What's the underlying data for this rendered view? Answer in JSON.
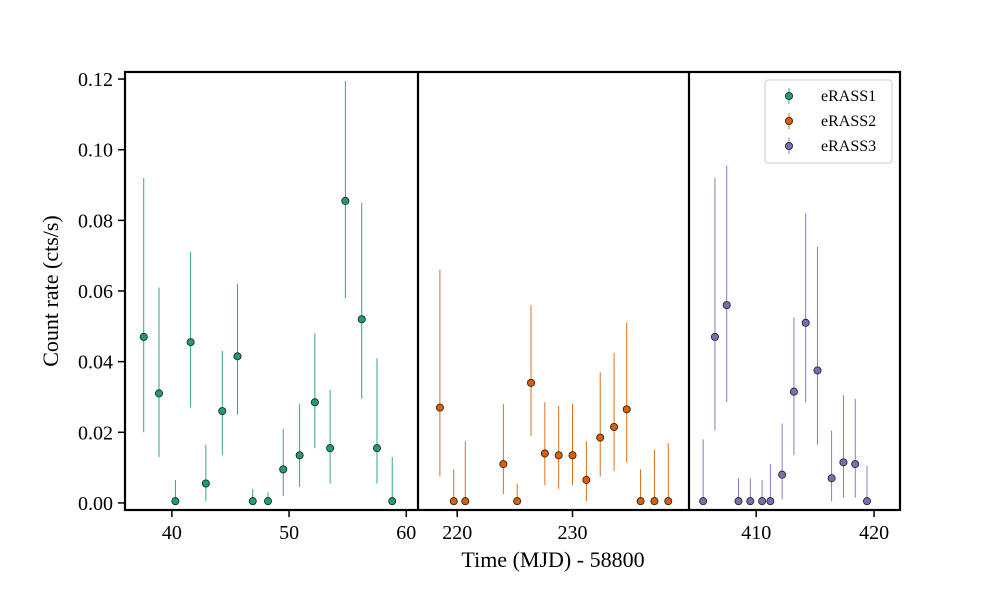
{
  "chart_data": {
    "type": "scatter",
    "title": "",
    "xlabel": "Time (MJD) - 58800",
    "ylabel": "Count rate (cts/s)",
    "ylim": [
      -0.002,
      0.122
    ],
    "y_ticks": [
      0.0,
      0.02,
      0.04,
      0.06,
      0.08,
      0.1,
      0.12
    ],
    "y_tick_labels": [
      "0.00",
      "0.02",
      "0.04",
      "0.06",
      "0.08",
      "0.10",
      "0.12"
    ],
    "grid": false,
    "legend_position": "top-right",
    "panels": [
      {
        "xlim": [
          36,
          61
        ],
        "x_ticks": [
          40,
          50,
          60
        ],
        "x_tick_labels": [
          "40",
          "50",
          "60"
        ]
      },
      {
        "xlim": [
          216.6,
          240.1
        ],
        "x_ticks": [
          220,
          230
        ],
        "x_tick_labels": [
          "220",
          "230"
        ]
      },
      {
        "xlim": [
          404.3,
          422.2
        ],
        "x_ticks": [
          410,
          420
        ],
        "x_tick_labels": [
          "410",
          "420"
        ]
      }
    ],
    "series": [
      {
        "name": "eRASS1",
        "color": "#1b9e77",
        "panel": 0,
        "points": [
          {
            "x": 37.6,
            "y": 0.047,
            "lo": 0.02,
            "hi": 0.092
          },
          {
            "x": 38.9,
            "y": 0.031,
            "lo": 0.013,
            "hi": 0.061
          },
          {
            "x": 40.3,
            "y": 0.0005,
            "lo": 0.0,
            "hi": 0.0065
          },
          {
            "x": 41.6,
            "y": 0.0455,
            "lo": 0.027,
            "hi": 0.071
          },
          {
            "x": 42.9,
            "y": 0.0055,
            "lo": 0.0005,
            "hi": 0.0165
          },
          {
            "x": 44.3,
            "y": 0.026,
            "lo": 0.0135,
            "hi": 0.043
          },
          {
            "x": 45.6,
            "y": 0.0415,
            "lo": 0.025,
            "hi": 0.062
          },
          {
            "x": 46.9,
            "y": 0.0005,
            "lo": 0.0,
            "hi": 0.004
          },
          {
            "x": 48.2,
            "y": 0.0005,
            "lo": 0.0,
            "hi": 0.003
          },
          {
            "x": 49.5,
            "y": 0.0095,
            "lo": 0.002,
            "hi": 0.021
          },
          {
            "x": 50.9,
            "y": 0.0135,
            "lo": 0.0045,
            "hi": 0.028
          },
          {
            "x": 52.2,
            "y": 0.0285,
            "lo": 0.0155,
            "hi": 0.048
          },
          {
            "x": 53.5,
            "y": 0.0155,
            "lo": 0.0055,
            "hi": 0.032
          },
          {
            "x": 54.8,
            "y": 0.0855,
            "lo": 0.058,
            "hi": 0.1195
          },
          {
            "x": 56.2,
            "y": 0.052,
            "lo": 0.0295,
            "hi": 0.085
          },
          {
            "x": 57.5,
            "y": 0.0155,
            "lo": 0.0055,
            "hi": 0.041
          },
          {
            "x": 58.8,
            "y": 0.0005,
            "lo": 0.0,
            "hi": 0.013
          }
        ]
      },
      {
        "name": "eRASS2",
        "color": "#d95f02",
        "panel": 1,
        "points": [
          {
            "x": 218.5,
            "y": 0.027,
            "lo": 0.0075,
            "hi": 0.066
          },
          {
            "x": 219.7,
            "y": 0.0005,
            "lo": 0.0,
            "hi": 0.0095
          },
          {
            "x": 220.7,
            "y": 0.0005,
            "lo": 0.0,
            "hi": 0.0175
          },
          {
            "x": 224.0,
            "y": 0.011,
            "lo": 0.0025,
            "hi": 0.028
          },
          {
            "x": 225.2,
            "y": 0.0005,
            "lo": 0.0,
            "hi": 0.0055
          },
          {
            "x": 226.4,
            "y": 0.034,
            "lo": 0.019,
            "hi": 0.056
          },
          {
            "x": 227.6,
            "y": 0.014,
            "lo": 0.005,
            "hi": 0.0285
          },
          {
            "x": 228.8,
            "y": 0.0135,
            "lo": 0.004,
            "hi": 0.0275
          },
          {
            "x": 230.0,
            "y": 0.0135,
            "lo": 0.005,
            "hi": 0.028
          },
          {
            "x": 231.2,
            "y": 0.0065,
            "lo": 0.0005,
            "hi": 0.0175
          },
          {
            "x": 232.4,
            "y": 0.0185,
            "lo": 0.0075,
            "hi": 0.037
          },
          {
            "x": 233.6,
            "y": 0.0215,
            "lo": 0.009,
            "hi": 0.0425
          },
          {
            "x": 234.7,
            "y": 0.0265,
            "lo": 0.0115,
            "hi": 0.051
          },
          {
            "x": 235.9,
            "y": 0.0005,
            "lo": 0.0,
            "hi": 0.0095
          },
          {
            "x": 237.1,
            "y": 0.0005,
            "lo": 0.0,
            "hi": 0.015
          },
          {
            "x": 238.3,
            "y": 0.0005,
            "lo": 0.0,
            "hi": 0.017
          }
        ]
      },
      {
        "name": "eRASS3",
        "color": "#7570b3",
        "panel": 2,
        "points": [
          {
            "x": 405.5,
            "y": 0.0005,
            "lo": 0.0,
            "hi": 0.018
          },
          {
            "x": 406.5,
            "y": 0.047,
            "lo": 0.0205,
            "hi": 0.092
          },
          {
            "x": 407.5,
            "y": 0.056,
            "lo": 0.0285,
            "hi": 0.0955
          },
          {
            "x": 408.5,
            "y": 0.0005,
            "lo": 0.0,
            "hi": 0.007
          },
          {
            "x": 409.5,
            "y": 0.0005,
            "lo": 0.0,
            "hi": 0.007
          },
          {
            "x": 410.5,
            "y": 0.0005,
            "lo": 0.0,
            "hi": 0.0065
          },
          {
            "x": 411.2,
            "y": 0.0005,
            "lo": 0.0,
            "hi": 0.011
          },
          {
            "x": 412.2,
            "y": 0.008,
            "lo": 0.001,
            "hi": 0.0225
          },
          {
            "x": 413.2,
            "y": 0.0315,
            "lo": 0.0135,
            "hi": 0.0525
          },
          {
            "x": 414.2,
            "y": 0.051,
            "lo": 0.0285,
            "hi": 0.082
          },
          {
            "x": 415.2,
            "y": 0.0375,
            "lo": 0.0165,
            "hi": 0.0725
          },
          {
            "x": 416.4,
            "y": 0.007,
            "lo": 0.0005,
            "hi": 0.0205
          },
          {
            "x": 417.4,
            "y": 0.0115,
            "lo": 0.0015,
            "hi": 0.0305
          },
          {
            "x": 418.4,
            "y": 0.011,
            "lo": 0.0015,
            "hi": 0.0295
          },
          {
            "x": 419.4,
            "y": 0.0005,
            "lo": 0.0,
            "hi": 0.0105
          }
        ]
      }
    ]
  }
}
